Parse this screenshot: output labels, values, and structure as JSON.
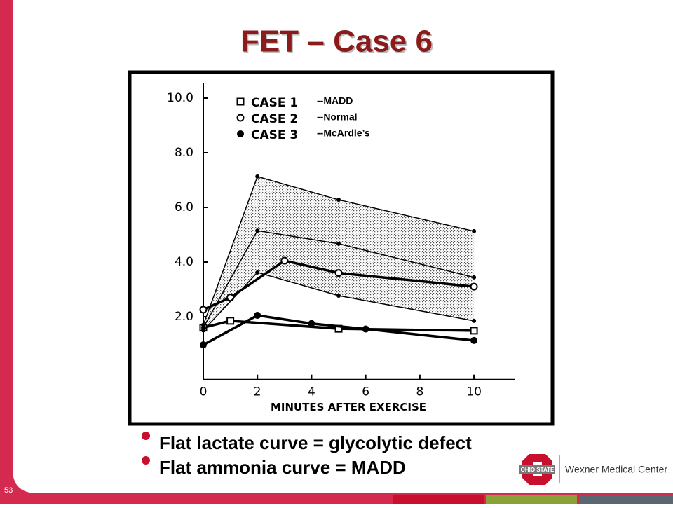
{
  "slide": {
    "title": "FET – Case 6",
    "page_number": "53",
    "bullets": [
      "Flat lactate curve = glycolytic defect",
      "Flat ammonia curve = MADD"
    ],
    "logo": {
      "mark": "OHIO STATE",
      "text": "Wexner Medical Center"
    }
  },
  "chart_data": {
    "type": "line",
    "xlabel": "MINUTES AFTER EXERCISE",
    "xlim": [
      0,
      11.5
    ],
    "ylim": [
      -0.3,
      10.5
    ],
    "xticks": [
      0,
      2,
      4,
      6,
      8,
      10
    ],
    "yticks": [
      {
        "value": 2,
        "label": "2.0"
      },
      {
        "value": 4,
        "label": "4.0"
      },
      {
        "value": 6,
        "label": "6.0"
      },
      {
        "value": 8,
        "label": "8.0"
      },
      {
        "value": 10,
        "label": "10.0"
      }
    ],
    "shaded_band": true,
    "series": [
      {
        "name": "CASE 1",
        "label": "--MADD",
        "color": "#000000",
        "marker": "square-open",
        "x": [
          0,
          1,
          5,
          10
        ],
        "values": [
          1.6,
          1.85,
          1.56,
          1.49
        ]
      },
      {
        "name": "CASE 2",
        "label": "--Normal",
        "color": "#000000",
        "marker": "circle-open",
        "x": [
          0,
          1,
          3,
          5,
          10
        ],
        "values": [
          2.26,
          2.7,
          4.05,
          3.6,
          3.1
        ]
      },
      {
        "name": "CASE 3",
        "label": "--McArdle’s",
        "color": "#000000",
        "marker": "circle-filled",
        "x": [
          0,
          2,
          4,
          6,
          10
        ],
        "values": [
          0.97,
          2.05,
          1.75,
          1.55,
          1.13
        ]
      },
      {
        "range": "upper",
        "color": "#000000",
        "marker": "dot",
        "x": [
          0,
          2,
          5,
          10
        ],
        "values": [
          1.7,
          7.13,
          6.28,
          5.13
        ]
      },
      {
        "range": "middle",
        "color": "#000000",
        "marker": "dot",
        "x": [
          0,
          2,
          5,
          10
        ],
        "values": [
          1.6,
          5.15,
          4.67,
          3.44
        ]
      },
      {
        "range": "lower",
        "color": "#000000",
        "marker": "dot",
        "x": [
          0,
          2,
          5,
          10
        ],
        "values": [
          1.5,
          3.62,
          2.77,
          1.85
        ]
      }
    ]
  }
}
